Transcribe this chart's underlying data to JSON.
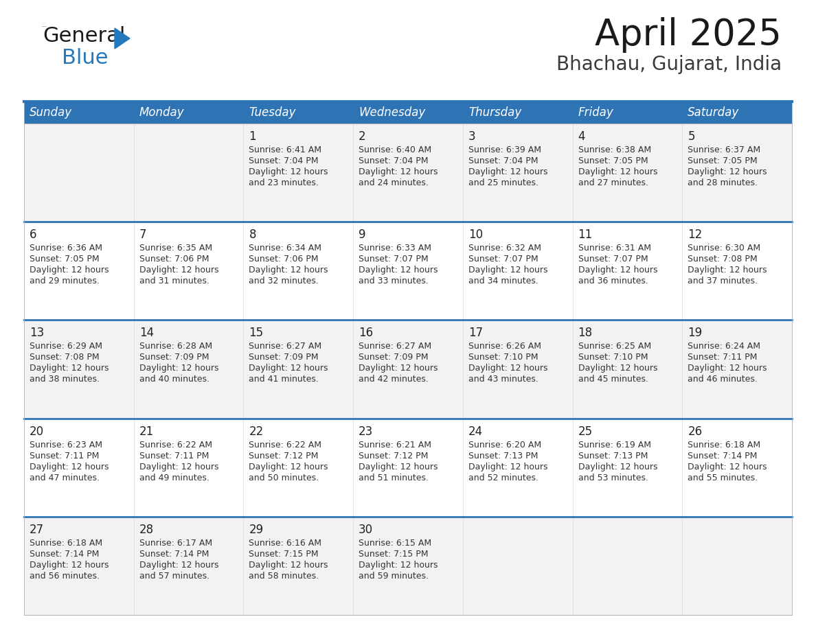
{
  "title": "April 2025",
  "subtitle": "Bhachau, Gujarat, India",
  "header_bg": "#2E74B5",
  "header_text_color": "#FFFFFF",
  "cell_bg_light": "#F2F2F2",
  "cell_bg_white": "#FFFFFF",
  "week_separator_color": "#2E74B5",
  "days_of_week": [
    "Sunday",
    "Monday",
    "Tuesday",
    "Wednesday",
    "Thursday",
    "Friday",
    "Saturday"
  ],
  "weeks": [
    [
      {
        "day": "",
        "sunrise": "",
        "sunset": "",
        "daylight": ""
      },
      {
        "day": "",
        "sunrise": "",
        "sunset": "",
        "daylight": ""
      },
      {
        "day": "1",
        "sunrise": "Sunrise: 6:41 AM",
        "sunset": "Sunset: 7:04 PM",
        "daylight": "Daylight: 12 hours\nand 23 minutes."
      },
      {
        "day": "2",
        "sunrise": "Sunrise: 6:40 AM",
        "sunset": "Sunset: 7:04 PM",
        "daylight": "Daylight: 12 hours\nand 24 minutes."
      },
      {
        "day": "3",
        "sunrise": "Sunrise: 6:39 AM",
        "sunset": "Sunset: 7:04 PM",
        "daylight": "Daylight: 12 hours\nand 25 minutes."
      },
      {
        "day": "4",
        "sunrise": "Sunrise: 6:38 AM",
        "sunset": "Sunset: 7:05 PM",
        "daylight": "Daylight: 12 hours\nand 27 minutes."
      },
      {
        "day": "5",
        "sunrise": "Sunrise: 6:37 AM",
        "sunset": "Sunset: 7:05 PM",
        "daylight": "Daylight: 12 hours\nand 28 minutes."
      }
    ],
    [
      {
        "day": "6",
        "sunrise": "Sunrise: 6:36 AM",
        "sunset": "Sunset: 7:05 PM",
        "daylight": "Daylight: 12 hours\nand 29 minutes."
      },
      {
        "day": "7",
        "sunrise": "Sunrise: 6:35 AM",
        "sunset": "Sunset: 7:06 PM",
        "daylight": "Daylight: 12 hours\nand 31 minutes."
      },
      {
        "day": "8",
        "sunrise": "Sunrise: 6:34 AM",
        "sunset": "Sunset: 7:06 PM",
        "daylight": "Daylight: 12 hours\nand 32 minutes."
      },
      {
        "day": "9",
        "sunrise": "Sunrise: 6:33 AM",
        "sunset": "Sunset: 7:07 PM",
        "daylight": "Daylight: 12 hours\nand 33 minutes."
      },
      {
        "day": "10",
        "sunrise": "Sunrise: 6:32 AM",
        "sunset": "Sunset: 7:07 PM",
        "daylight": "Daylight: 12 hours\nand 34 minutes."
      },
      {
        "day": "11",
        "sunrise": "Sunrise: 6:31 AM",
        "sunset": "Sunset: 7:07 PM",
        "daylight": "Daylight: 12 hours\nand 36 minutes."
      },
      {
        "day": "12",
        "sunrise": "Sunrise: 6:30 AM",
        "sunset": "Sunset: 7:08 PM",
        "daylight": "Daylight: 12 hours\nand 37 minutes."
      }
    ],
    [
      {
        "day": "13",
        "sunrise": "Sunrise: 6:29 AM",
        "sunset": "Sunset: 7:08 PM",
        "daylight": "Daylight: 12 hours\nand 38 minutes."
      },
      {
        "day": "14",
        "sunrise": "Sunrise: 6:28 AM",
        "sunset": "Sunset: 7:09 PM",
        "daylight": "Daylight: 12 hours\nand 40 minutes."
      },
      {
        "day": "15",
        "sunrise": "Sunrise: 6:27 AM",
        "sunset": "Sunset: 7:09 PM",
        "daylight": "Daylight: 12 hours\nand 41 minutes."
      },
      {
        "day": "16",
        "sunrise": "Sunrise: 6:27 AM",
        "sunset": "Sunset: 7:09 PM",
        "daylight": "Daylight: 12 hours\nand 42 minutes."
      },
      {
        "day": "17",
        "sunrise": "Sunrise: 6:26 AM",
        "sunset": "Sunset: 7:10 PM",
        "daylight": "Daylight: 12 hours\nand 43 minutes."
      },
      {
        "day": "18",
        "sunrise": "Sunrise: 6:25 AM",
        "sunset": "Sunset: 7:10 PM",
        "daylight": "Daylight: 12 hours\nand 45 minutes."
      },
      {
        "day": "19",
        "sunrise": "Sunrise: 6:24 AM",
        "sunset": "Sunset: 7:11 PM",
        "daylight": "Daylight: 12 hours\nand 46 minutes."
      }
    ],
    [
      {
        "day": "20",
        "sunrise": "Sunrise: 6:23 AM",
        "sunset": "Sunset: 7:11 PM",
        "daylight": "Daylight: 12 hours\nand 47 minutes."
      },
      {
        "day": "21",
        "sunrise": "Sunrise: 6:22 AM",
        "sunset": "Sunset: 7:11 PM",
        "daylight": "Daylight: 12 hours\nand 49 minutes."
      },
      {
        "day": "22",
        "sunrise": "Sunrise: 6:22 AM",
        "sunset": "Sunset: 7:12 PM",
        "daylight": "Daylight: 12 hours\nand 50 minutes."
      },
      {
        "day": "23",
        "sunrise": "Sunrise: 6:21 AM",
        "sunset": "Sunset: 7:12 PM",
        "daylight": "Daylight: 12 hours\nand 51 minutes."
      },
      {
        "day": "24",
        "sunrise": "Sunrise: 6:20 AM",
        "sunset": "Sunset: 7:13 PM",
        "daylight": "Daylight: 12 hours\nand 52 minutes."
      },
      {
        "day": "25",
        "sunrise": "Sunrise: 6:19 AM",
        "sunset": "Sunset: 7:13 PM",
        "daylight": "Daylight: 12 hours\nand 53 minutes."
      },
      {
        "day": "26",
        "sunrise": "Sunrise: 6:18 AM",
        "sunset": "Sunset: 7:14 PM",
        "daylight": "Daylight: 12 hours\nand 55 minutes."
      }
    ],
    [
      {
        "day": "27",
        "sunrise": "Sunrise: 6:18 AM",
        "sunset": "Sunset: 7:14 PM",
        "daylight": "Daylight: 12 hours\nand 56 minutes."
      },
      {
        "day": "28",
        "sunrise": "Sunrise: 6:17 AM",
        "sunset": "Sunset: 7:14 PM",
        "daylight": "Daylight: 12 hours\nand 57 minutes."
      },
      {
        "day": "29",
        "sunrise": "Sunrise: 6:16 AM",
        "sunset": "Sunset: 7:15 PM",
        "daylight": "Daylight: 12 hours\nand 58 minutes."
      },
      {
        "day": "30",
        "sunrise": "Sunrise: 6:15 AM",
        "sunset": "Sunset: 7:15 PM",
        "daylight": "Daylight: 12 hours\nand 59 minutes."
      },
      {
        "day": "",
        "sunrise": "",
        "sunset": "",
        "daylight": ""
      },
      {
        "day": "",
        "sunrise": "",
        "sunset": "",
        "daylight": ""
      },
      {
        "day": "",
        "sunrise": "",
        "sunset": "",
        "daylight": ""
      }
    ]
  ],
  "logo_color_general": "#1A1A1A",
  "logo_color_blue": "#2479BD",
  "title_color": "#1A1A1A",
  "subtitle_color": "#3A3A3A",
  "title_fontsize": 38,
  "subtitle_fontsize": 20,
  "dow_fontsize": 12,
  "day_num_fontsize": 12,
  "cell_text_fontsize": 9
}
